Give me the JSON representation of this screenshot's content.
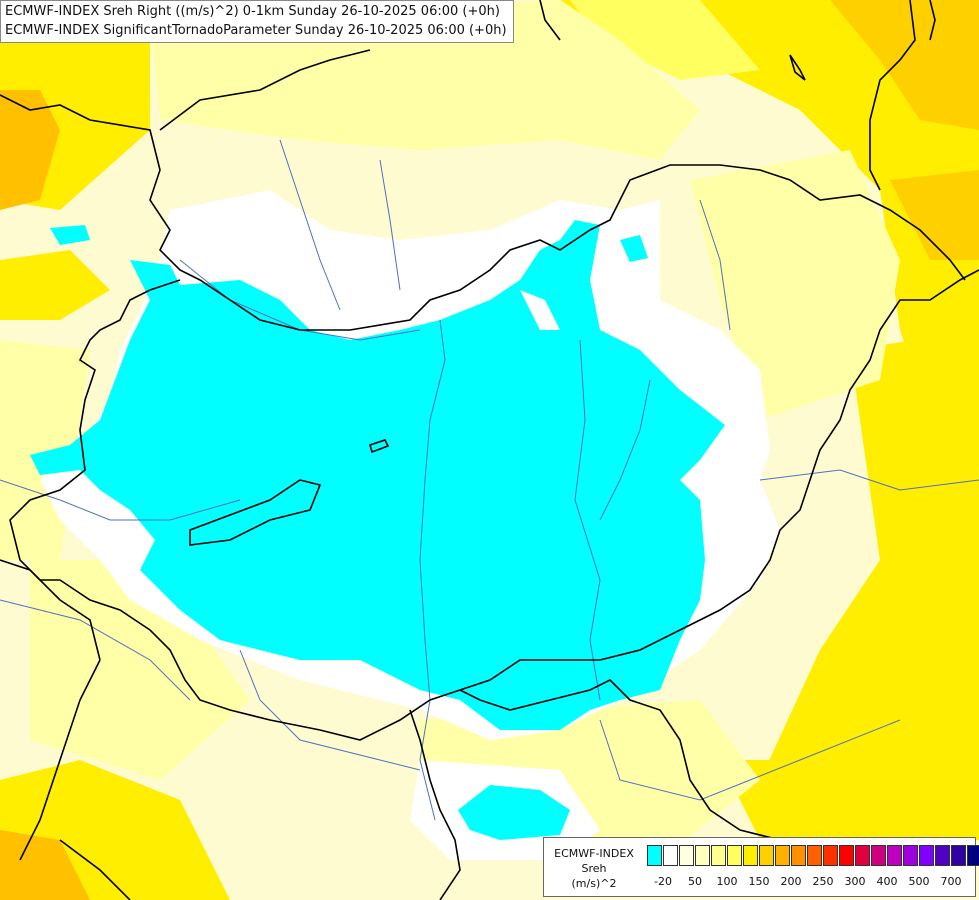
{
  "header": {
    "line1": "ECMWF-INDEX Sreh Right ((m/s)^2) 0-1km Sunday 26-10-2025 06:00 (+0h)",
    "line2": "ECMWF-INDEX SignificantTornadoParameter Sunday 26-10-2025 06:00 (+0h)"
  },
  "legend": {
    "title_line1": "ECMWF-INDEX",
    "title_line2": "Sreh",
    "title_line3": "(m/s)^2",
    "colors": [
      "#00ffff",
      "#ffffff",
      "#ffffe0",
      "#ffffc0",
      "#ffff90",
      "#ffff60",
      "#ffee00",
      "#ffd000",
      "#ffb000",
      "#ff9000",
      "#ff6000",
      "#ff3000",
      "#ff0000",
      "#e00040",
      "#d00080",
      "#c000c0",
      "#a000e0",
      "#8000ff",
      "#5000c0",
      "#3000a0",
      "#000080"
    ],
    "ticks": [
      "-20",
      "50",
      "100",
      "150",
      "200",
      "250",
      "300",
      "400",
      "500",
      "700"
    ]
  },
  "map_colors": {
    "cyan_low": "#00ffff",
    "white_zone": "#ffffff",
    "pale_yellow": "#fffbd0",
    "light_yellow": "#ffffa8",
    "yellow": "#ffee00",
    "orange": "#ffc000",
    "border": "#000000",
    "river": "#5070c0"
  }
}
